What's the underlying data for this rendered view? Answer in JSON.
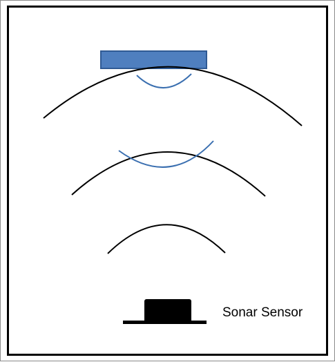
{
  "diagram": {
    "sensor_label": "Sonar Sensor",
    "colors": {
      "border": "#000000",
      "emitted_wave": "#000000",
      "echo_wave": "#3a6fb0",
      "target_fill": "#4f7fbf",
      "target_stroke": "#2f5a94",
      "sensor_fill": "#000000"
    },
    "elements": {
      "target": "reflecting-object",
      "emitted_waves": 3,
      "echo_waves": 2,
      "sensor": "sonar-sensor-icon"
    }
  }
}
